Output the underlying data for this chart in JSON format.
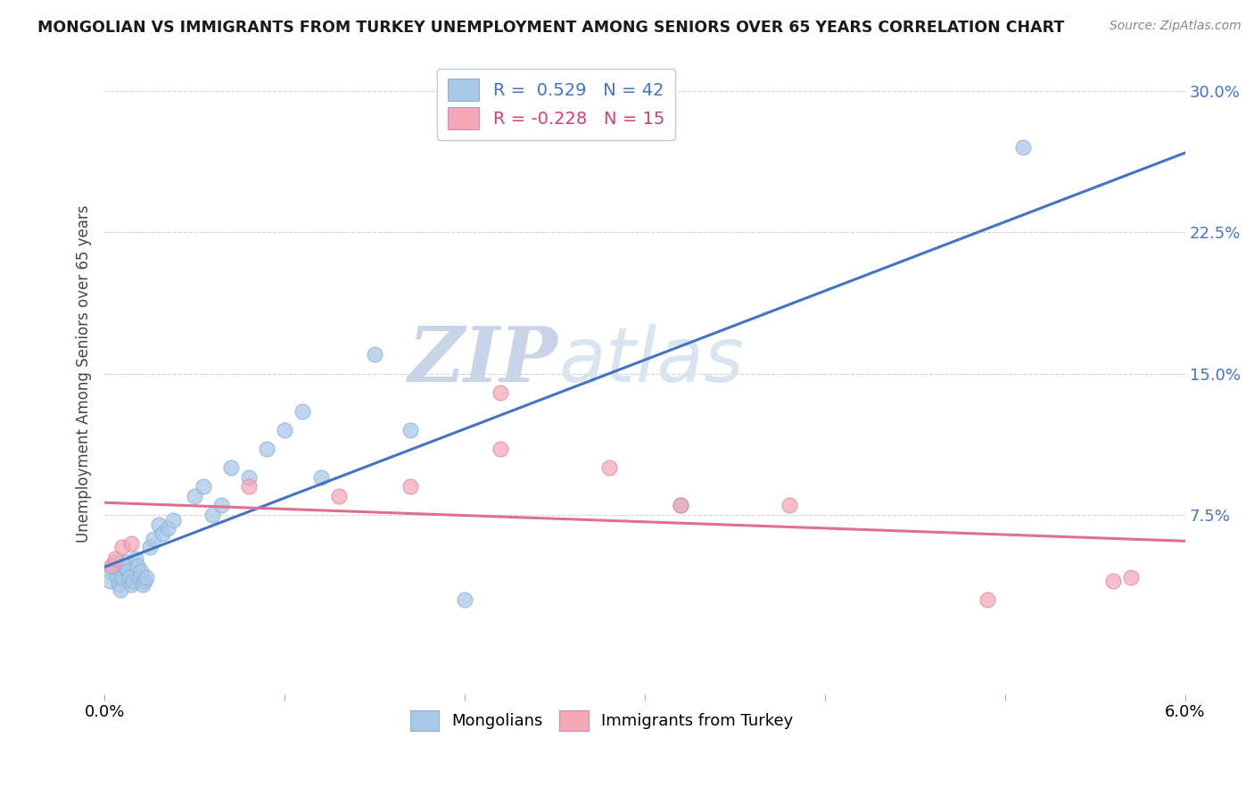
{
  "title": "MONGOLIAN VS IMMIGRANTS FROM TURKEY UNEMPLOYMENT AMONG SENIORS OVER 65 YEARS CORRELATION CHART",
  "source": "Source: ZipAtlas.com",
  "ylabel": "Unemployment Among Seniors over 65 years",
  "xlim": [
    0.0,
    0.06
  ],
  "ylim": [
    0.0,
    0.32
  ],
  "blue_color": "#a8c8e8",
  "pink_color": "#f4a8b8",
  "blue_line_color": "#4472c4",
  "pink_line_color": "#e07090",
  "R_blue": 0.529,
  "N_blue": 42,
  "R_pink": -0.228,
  "N_pink": 15,
  "mongolian_x": [
    0.0003,
    0.0004,
    0.0005,
    0.0006,
    0.0007,
    0.0008,
    0.0009,
    0.001,
    0.0011,
    0.0012,
    0.0013,
    0.0014,
    0.0015,
    0.0016,
    0.0017,
    0.0018,
    0.0019,
    0.002,
    0.0021,
    0.0022,
    0.0023,
    0.0025,
    0.0027,
    0.003,
    0.0032,
    0.0035,
    0.0038,
    0.005,
    0.0055,
    0.006,
    0.0065,
    0.007,
    0.008,
    0.009,
    0.01,
    0.011,
    0.012,
    0.015,
    0.017,
    0.02,
    0.032,
    0.051
  ],
  "mongolian_y": [
    0.04,
    0.045,
    0.048,
    0.05,
    0.042,
    0.038,
    0.035,
    0.042,
    0.048,
    0.05,
    0.045,
    0.042,
    0.038,
    0.04,
    0.052,
    0.048,
    0.042,
    0.045,
    0.038,
    0.04,
    0.042,
    0.058,
    0.062,
    0.07,
    0.065,
    0.068,
    0.072,
    0.085,
    0.09,
    0.075,
    0.08,
    0.1,
    0.095,
    0.11,
    0.12,
    0.13,
    0.095,
    0.16,
    0.12,
    0.03,
    0.08,
    0.27
  ],
  "turkey_x": [
    0.0004,
    0.0006,
    0.001,
    0.0015,
    0.008,
    0.013,
    0.017,
    0.022,
    0.022,
    0.028,
    0.032,
    0.038,
    0.049,
    0.056,
    0.057
  ],
  "turkey_y": [
    0.048,
    0.052,
    0.058,
    0.06,
    0.09,
    0.085,
    0.09,
    0.14,
    0.11,
    0.1,
    0.08,
    0.08,
    0.03,
    0.04,
    0.042
  ],
  "watermark_zip": "ZIP",
  "watermark_atlas": "atlas",
  "watermark_color": "#dde5f0",
  "legend_blue_color": "#4472c4",
  "legend_pink_color": "#d04070"
}
